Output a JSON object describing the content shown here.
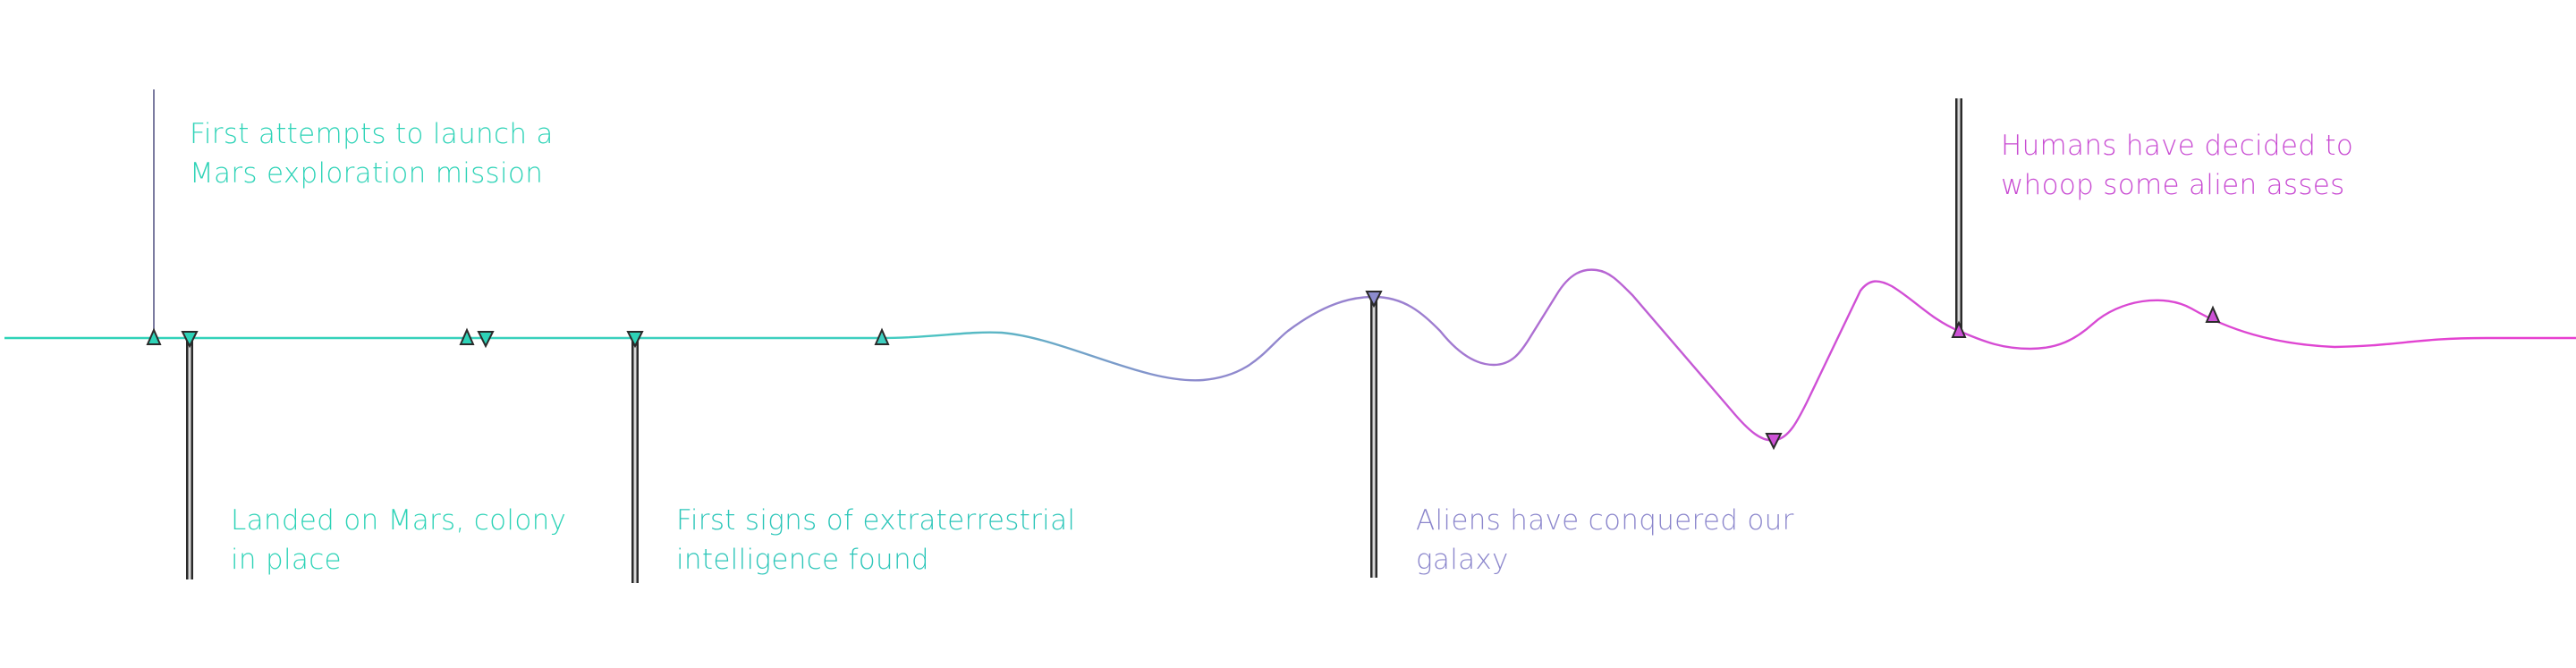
{
  "timeline": {
    "colors": {
      "start": "#2ed3b7",
      "middle": "#8b86cc",
      "end": "#dd3fd2",
      "pole": "#2b2b2b"
    },
    "events": [
      {
        "text": "First attempts to launch a\nMars exploration mission",
        "color": "#2ed3b7"
      },
      {
        "text": "Landed on Mars, colony\nin place",
        "color": "#2ed3b7"
      },
      {
        "text": "First signs of extraterrestrial\nintelligence found",
        "color": "#2cc6b9"
      },
      {
        "text": "Aliens have conquered our\ngalaxy",
        "color": "#8b86cc"
      },
      {
        "text": "Humans have decided to\nwhoop some alien asses",
        "color": "#c84ad2"
      }
    ]
  }
}
